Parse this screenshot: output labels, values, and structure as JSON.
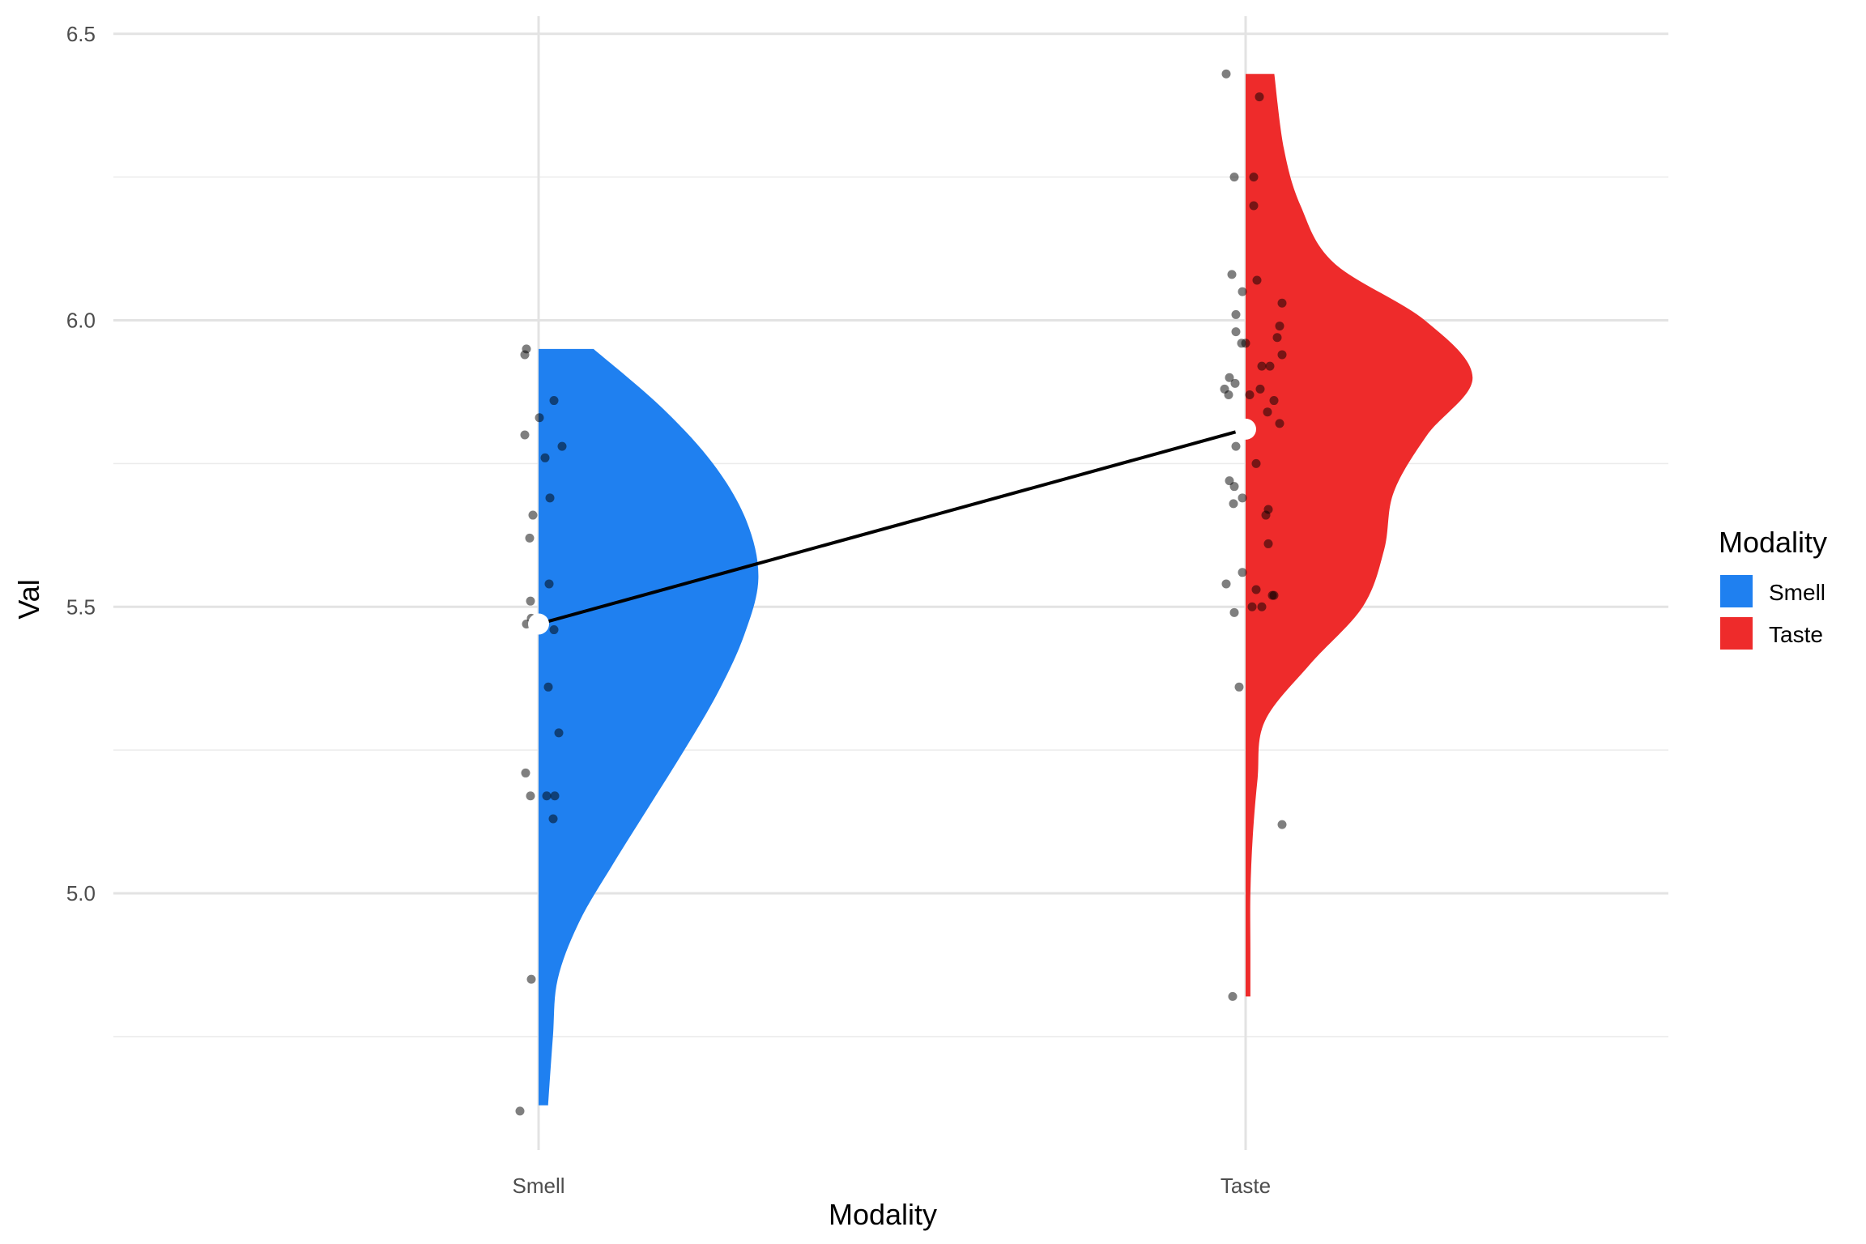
{
  "chart_data": {
    "type": "raincloud",
    "xlabel": "Modality",
    "ylabel": "Val",
    "categories": [
      "Smell",
      "Taste"
    ],
    "ylim": [
      4.6,
      6.52
    ],
    "yticks": [
      5.0,
      5.5,
      6.0,
      6.5
    ],
    "yticks_labels": [
      "5.0",
      "5.5",
      "6.0",
      "6.5"
    ],
    "grid": true,
    "legend": {
      "title": "Modality",
      "position": "right",
      "entries": [
        {
          "label": "Smell",
          "color": "#1f80f0"
        },
        {
          "label": "Taste",
          "color": "#ee2b2b"
        }
      ]
    },
    "series": [
      {
        "name": "Smell",
        "color": "#1f80f0",
        "mean": 5.47,
        "density": [
          [
            4.63,
            0.04
          ],
          [
            4.75,
            0.06
          ],
          [
            4.85,
            0.08
          ],
          [
            4.95,
            0.17
          ],
          [
            5.05,
            0.31
          ],
          [
            5.15,
            0.46
          ],
          [
            5.25,
            0.61
          ],
          [
            5.35,
            0.75
          ],
          [
            5.45,
            0.86
          ],
          [
            5.55,
            0.92
          ],
          [
            5.65,
            0.87
          ],
          [
            5.75,
            0.73
          ],
          [
            5.85,
            0.51
          ],
          [
            5.95,
            0.23
          ]
        ],
        "points": [
          [
            -0.015,
            5.95
          ],
          [
            -0.017,
            5.94
          ],
          [
            0.019,
            5.86
          ],
          [
            0.001,
            5.83
          ],
          [
            -0.017,
            5.8
          ],
          [
            0.029,
            5.78
          ],
          [
            0.008,
            5.76
          ],
          [
            0.014,
            5.69
          ],
          [
            -0.007,
            5.66
          ],
          [
            -0.011,
            5.62
          ],
          [
            0.013,
            5.54
          ],
          [
            -0.01,
            5.51
          ],
          [
            -0.015,
            5.47
          ],
          [
            0.019,
            5.46
          ],
          [
            -0.009,
            5.48
          ],
          [
            0.012,
            5.36
          ],
          [
            0.025,
            5.28
          ],
          [
            -0.016,
            5.21
          ],
          [
            -0.01,
            5.17
          ],
          [
            0.01,
            5.17
          ],
          [
            0.02,
            5.17
          ],
          [
            0.018,
            5.13
          ],
          [
            -0.009,
            4.85
          ],
          [
            -0.023,
            4.62
          ]
        ]
      },
      {
        "name": "Taste",
        "color": "#ee2b2b",
        "mean": 5.81,
        "density": [
          [
            4.82,
            0.02
          ],
          [
            4.9,
            0.02
          ],
          [
            5.0,
            0.02
          ],
          [
            5.1,
            0.03
          ],
          [
            5.2,
            0.05
          ],
          [
            5.3,
            0.08
          ],
          [
            5.4,
            0.27
          ],
          [
            5.5,
            0.49
          ],
          [
            5.6,
            0.58
          ],
          [
            5.7,
            0.62
          ],
          [
            5.8,
            0.76
          ],
          [
            5.9,
            0.95
          ],
          [
            6.0,
            0.75
          ],
          [
            6.1,
            0.37
          ],
          [
            6.2,
            0.23
          ],
          [
            6.3,
            0.16
          ],
          [
            6.43,
            0.12
          ]
        ],
        "points": [
          [
            -0.024,
            6.43
          ],
          [
            0.017,
            6.39
          ],
          [
            -0.014,
            6.25
          ],
          [
            0.01,
            6.25
          ],
          [
            0.01,
            6.2
          ],
          [
            0.014,
            6.07
          ],
          [
            -0.017,
            6.08
          ],
          [
            -0.004,
            6.05
          ],
          [
            0.045,
            6.03
          ],
          [
            -0.012,
            6.01
          ],
          [
            0.042,
            5.99
          ],
          [
            -0.012,
            5.98
          ],
          [
            0.039,
            5.97
          ],
          [
            -0.005,
            5.96
          ],
          [
            0.0,
            5.96
          ],
          [
            0.045,
            5.94
          ],
          [
            0.02,
            5.92
          ],
          [
            0.03,
            5.92
          ],
          [
            -0.02,
            5.9
          ],
          [
            -0.013,
            5.89
          ],
          [
            -0.026,
            5.88
          ],
          [
            -0.021,
            5.87
          ],
          [
            0.018,
            5.88
          ],
          [
            0.005,
            5.87
          ],
          [
            0.035,
            5.86
          ],
          [
            0.027,
            5.84
          ],
          [
            0.042,
            5.82
          ],
          [
            -0.012,
            5.78
          ],
          [
            0.013,
            5.75
          ],
          [
            -0.02,
            5.72
          ],
          [
            -0.014,
            5.71
          ],
          [
            -0.004,
            5.69
          ],
          [
            -0.015,
            5.68
          ],
          [
            0.028,
            5.67
          ],
          [
            0.025,
            5.66
          ],
          [
            0.028,
            5.61
          ],
          [
            -0.004,
            5.56
          ],
          [
            -0.024,
            5.54
          ],
          [
            0.013,
            5.53
          ],
          [
            0.033,
            5.52
          ],
          [
            0.035,
            5.52
          ],
          [
            0.008,
            5.5
          ],
          [
            0.02,
            5.5
          ],
          [
            -0.014,
            5.49
          ],
          [
            -0.008,
            5.36
          ],
          [
            0.045,
            5.12
          ],
          [
            -0.016,
            4.82
          ]
        ]
      }
    ]
  }
}
